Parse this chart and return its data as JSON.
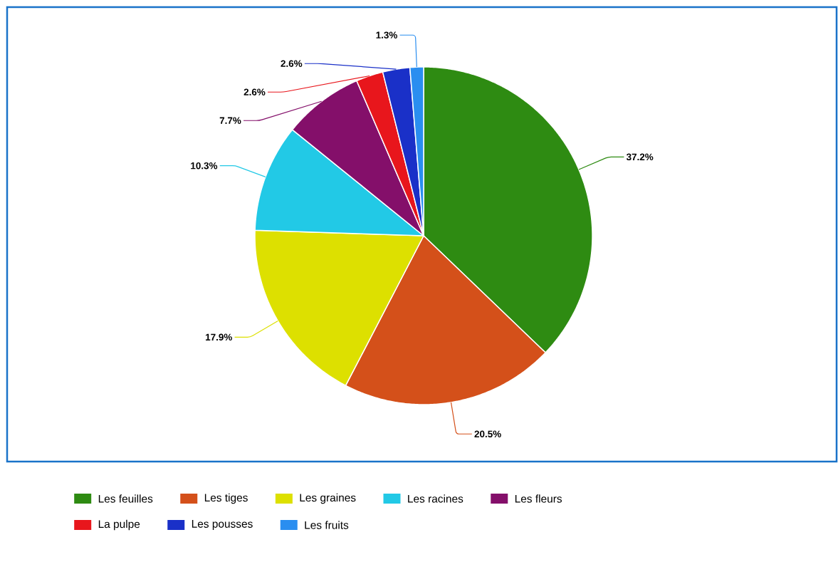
{
  "chart_data": {
    "type": "pie",
    "categories": [
      "Les feuilles",
      "Les tiges",
      "Les graines",
      "Les racines",
      "Les fleurs",
      "La pulpe",
      "Les pousses",
      "Les fruits"
    ],
    "values": [
      37.2,
      20.5,
      17.9,
      10.3,
      7.7,
      2.6,
      2.6,
      1.3
    ],
    "value_labels": [
      "37.2%",
      "20.5%",
      "17.9%",
      "10.3%",
      "7.7%",
      "2.6%",
      "2.6%",
      "1.3%"
    ],
    "colors": [
      "#2e8b12",
      "#d4501a",
      "#dde000",
      "#22c9e6",
      "#840f6a",
      "#e8161c",
      "#1a30c8",
      "#2a8ef0"
    ],
    "legend": "bottom"
  }
}
